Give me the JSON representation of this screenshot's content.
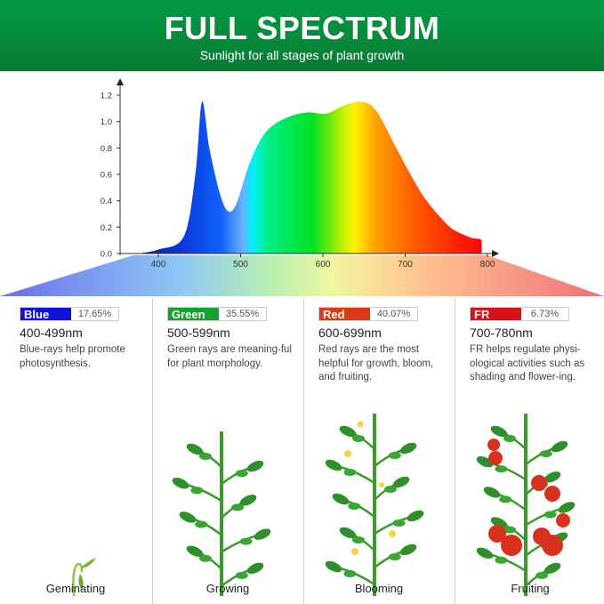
{
  "header": {
    "title": "FULL SPECTRUM",
    "subtitle": "Sunlight for all stages of plant growth"
  },
  "chart_data": {
    "type": "area",
    "title": "",
    "xlabel": "",
    "ylabel": "",
    "xlim": [
      353,
      812
    ],
    "ylim": [
      0,
      1.25
    ],
    "x_ticks": [
      "400",
      "500",
      "600",
      "700",
      "800"
    ],
    "y_ticks": [
      "0.0",
      "0.2",
      "0.4",
      "0.6",
      "0.8",
      "1.0",
      "1.2"
    ],
    "grid": false,
    "fill": "visible-spectrum gradient",
    "x": [
      376,
      400,
      431,
      445,
      453,
      462,
      475,
      485,
      495,
      510,
      525,
      539,
      560,
      582,
      604,
      625,
      647,
      665,
      690,
      710,
      726,
      745,
      759,
      780,
      793,
      793
    ],
    "y": [
      0,
      0.03,
      0.13,
      0.6,
      1.15,
      0.8,
      0.45,
      0.32,
      0.38,
      0.67,
      0.87,
      0.97,
      1.04,
      1.07,
      1.06,
      1.12,
      1.15,
      1.08,
      0.79,
      0.56,
      0.4,
      0.26,
      0.18,
      0.12,
      0.1,
      0
    ]
  },
  "bands": [
    {
      "name": "Blue",
      "percent": "17.65%",
      "range": "400-499nm",
      "desc": "Blue-rays help promote photosynthesis.",
      "color": "#1212d6",
      "stage": "Geminating"
    },
    {
      "name": "Green",
      "percent": "35.55%",
      "range": "500-599nm",
      "desc": "Green rays are meaning-ful for plant morphology.",
      "color": "#16a02f",
      "stage": "Growing"
    },
    {
      "name": "Red",
      "percent": "40.07%",
      "range": "600-699nm",
      "desc": "Red rays are the most helpful for growth, bloom, and fruiting.",
      "color": "#dc3a14",
      "stage": "Blooming"
    },
    {
      "name": "FR",
      "percent": "6.73%",
      "range": "700-780nm",
      "desc": "FR helps regulate physi-ological activities such as shading and flower-ing.",
      "color": "#d9101a",
      "stage": "Fruiting"
    }
  ]
}
